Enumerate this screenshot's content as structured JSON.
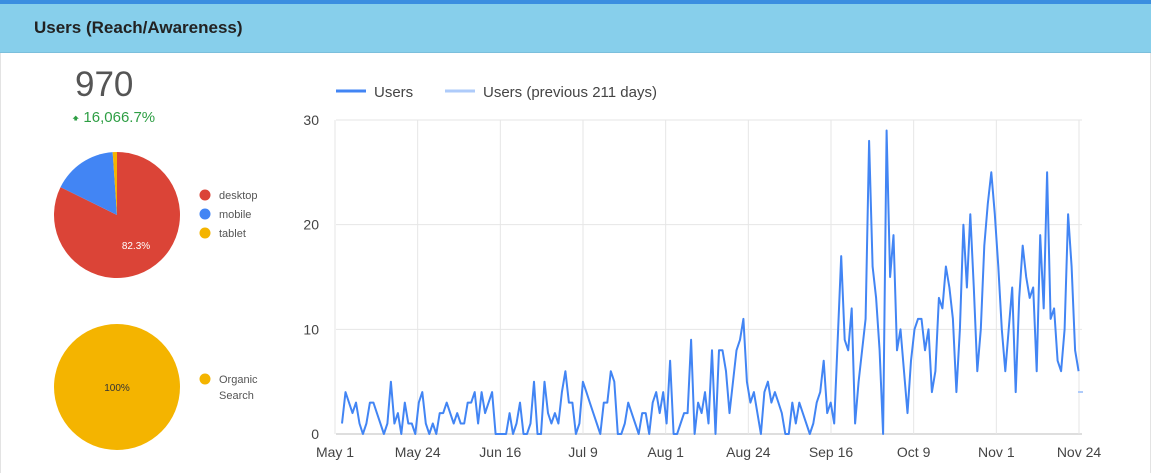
{
  "header": {
    "title": "Users (Reach/Awareness)"
  },
  "scorecard": {
    "value": "970",
    "change": "16,066.7%",
    "change_direction": "up",
    "change_color": "#2e9e44"
  },
  "device_pie": {
    "slices": [
      {
        "name": "desktop",
        "value": 82.3,
        "color": "#db4437",
        "label": "82.3%"
      },
      {
        "name": "mobile",
        "value": 16.6,
        "color": "#4285f4",
        "label": ""
      },
      {
        "name": "tablet",
        "value": 1.1,
        "color": "#f4b400",
        "label": ""
      }
    ]
  },
  "channel_pie": {
    "slices": [
      {
        "name": "Organic Search",
        "name_lines": [
          "Organic",
          "Search"
        ],
        "value": 100,
        "color": "#f4b400",
        "label": "100%"
      }
    ]
  },
  "chart_data": {
    "type": "line",
    "series": [
      {
        "name": "Users",
        "color": "#4285f4",
        "values": [
          1,
          4,
          3,
          2,
          3,
          1,
          0,
          1,
          3,
          3,
          2,
          1,
          0,
          1,
          5,
          1,
          2,
          0,
          3,
          1,
          1,
          0,
          3,
          4,
          1,
          0,
          1,
          0,
          2,
          2,
          3,
          2,
          1,
          2,
          1,
          1,
          3,
          3,
          4,
          1,
          4,
          2,
          3,
          4,
          0,
          0,
          0,
          0,
          2,
          0,
          1,
          3,
          0,
          0,
          1,
          5,
          0,
          0,
          5,
          2,
          1,
          2,
          1,
          4,
          6,
          3,
          3,
          0,
          1,
          5,
          4,
          3,
          2,
          1,
          0,
          3,
          3,
          6,
          5,
          0,
          0,
          1,
          3,
          2,
          1,
          0,
          2,
          2,
          0,
          3,
          4,
          2,
          4,
          1,
          7,
          0,
          0,
          1,
          2,
          2,
          9,
          0,
          3,
          2,
          4,
          1,
          8,
          0,
          8,
          8,
          6,
          2,
          5,
          8,
          9,
          11,
          5,
          3,
          4,
          2,
          0,
          4,
          5,
          3,
          4,
          3,
          2,
          0,
          0,
          3,
          1,
          3,
          2,
          1,
          0,
          1,
          3,
          4,
          7,
          2,
          3,
          1,
          9,
          17,
          9,
          8,
          12,
          1,
          5,
          8,
          11,
          28,
          16,
          13,
          8,
          0,
          29,
          15,
          19,
          8,
          10,
          6,
          2,
          7,
          10,
          11,
          11,
          8,
          10,
          4,
          6,
          13,
          12,
          16,
          14,
          11,
          4,
          10,
          20,
          14,
          21,
          14,
          6,
          10,
          18,
          22,
          25,
          21,
          16,
          10,
          6,
          10,
          14,
          4,
          13,
          18,
          15,
          13,
          14,
          6,
          19,
          12,
          25,
          11,
          12,
          7,
          6,
          10,
          21,
          16,
          8,
          6
        ]
      },
      {
        "name": "Users (previous 211 days)",
        "color": "#aecbfa",
        "values": []
      }
    ],
    "x_tick_labels": [
      "May 1",
      "May 24",
      "Jun 16",
      "Jul 9",
      "Aug 1",
      "Aug 24",
      "Sep 16",
      "Oct 9",
      "Nov 1",
      "Nov 24"
    ],
    "y_tick_labels": [
      "0",
      "10",
      "20",
      "30"
    ],
    "ylim": [
      0,
      30
    ],
    "grid": true,
    "legend": "top-left"
  }
}
